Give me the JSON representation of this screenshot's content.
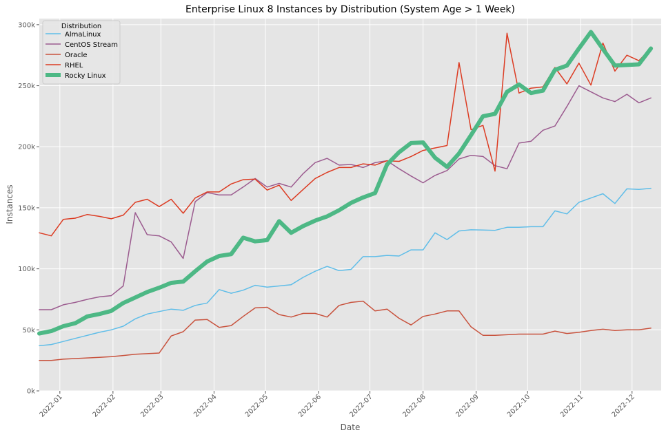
{
  "chart_data": {
    "type": "line",
    "title": "Enterprise Linux 8 Instances by Distribution (System Age > 1 Week)",
    "xlabel": "Date",
    "ylabel": "Instances",
    "xlim": [
      "2021-12-20",
      "2022-12-18"
    ],
    "ylim": [
      0,
      305000
    ],
    "grid": true,
    "legend": {
      "title": "Distribution",
      "placement": "top-left"
    },
    "x_ticks": [
      {
        "date": "2022-01-01",
        "label": "2022-01"
      },
      {
        "date": "2022-02-01",
        "label": "2022-02"
      },
      {
        "date": "2022-03-01",
        "label": "2022-03"
      },
      {
        "date": "2022-04-01",
        "label": "2022-04"
      },
      {
        "date": "2022-05-01",
        "label": "2022-05"
      },
      {
        "date": "2022-06-01",
        "label": "2022-06"
      },
      {
        "date": "2022-07-01",
        "label": "2022-07"
      },
      {
        "date": "2022-08-01",
        "label": "2022-08"
      },
      {
        "date": "2022-09-01",
        "label": "2022-09"
      },
      {
        "date": "2022-10-01",
        "label": "2022-10"
      },
      {
        "date": "2022-11-01",
        "label": "2022-11"
      },
      {
        "date": "2022-12-01",
        "label": "2022-12"
      }
    ],
    "y_ticks": [
      {
        "value": 0,
        "label": "0k"
      },
      {
        "value": 50000,
        "label": "50k"
      },
      {
        "value": 100000,
        "label": "100k"
      },
      {
        "value": 150000,
        "label": "150k"
      },
      {
        "value": 200000,
        "label": "200k"
      },
      {
        "value": 250000,
        "label": "250k"
      },
      {
        "value": 300000,
        "label": "300k"
      }
    ],
    "x": [
      "2021-12-20",
      "2021-12-27",
      "2022-01-03",
      "2022-01-10",
      "2022-01-17",
      "2022-01-24",
      "2022-01-31",
      "2022-02-07",
      "2022-02-14",
      "2022-02-21",
      "2022-02-28",
      "2022-03-07",
      "2022-03-14",
      "2022-03-21",
      "2022-03-28",
      "2022-04-04",
      "2022-04-11",
      "2022-04-18",
      "2022-04-25",
      "2022-05-02",
      "2022-05-09",
      "2022-05-16",
      "2022-05-23",
      "2022-05-30",
      "2022-06-06",
      "2022-06-13",
      "2022-06-20",
      "2022-06-27",
      "2022-07-04",
      "2022-07-11",
      "2022-07-18",
      "2022-07-25",
      "2022-08-01",
      "2022-08-08",
      "2022-08-15",
      "2022-08-22",
      "2022-08-29",
      "2022-09-05",
      "2022-09-12",
      "2022-09-19",
      "2022-09-26",
      "2022-10-03",
      "2022-10-10",
      "2022-10-17",
      "2022-10-24",
      "2022-10-31",
      "2022-11-07",
      "2022-11-14",
      "2022-11-21",
      "2022-11-28",
      "2022-12-05",
      "2022-12-12"
    ],
    "series": [
      {
        "name": "AlmaLinux",
        "color": "#5fbde8",
        "width": 1.5,
        "values": [
          37000,
          38000,
          40500,
          43000,
          45500,
          48000,
          50000,
          53000,
          59000,
          63000,
          65000,
          67000,
          66000,
          70000,
          72000,
          83000,
          80000,
          82500,
          86500,
          85000,
          86000,
          87000,
          93000,
          98000,
          102000,
          98500,
          99500,
          110000,
          110000,
          111000,
          110500,
          115500,
          115500,
          129500,
          124000,
          131000,
          132000,
          131800,
          131500,
          134000,
          134000,
          134500,
          134500,
          147500,
          145000,
          154500,
          158000,
          161500,
          153500,
          165500,
          165000,
          166000
        ]
      },
      {
        "name": "CentOS Stream",
        "color": "#9b5b8f",
        "width": 1.5,
        "values": [
          66500,
          66500,
          70500,
          72500,
          75000,
          77000,
          78000,
          86000,
          146000,
          128000,
          127000,
          122000,
          108500,
          155000,
          162500,
          160500,
          160500,
          167000,
          174000,
          167000,
          170000,
          167000,
          178000,
          187000,
          190500,
          185000,
          185500,
          183000,
          187000,
          188500,
          182000,
          176000,
          170500,
          176500,
          180500,
          190000,
          193000,
          192000,
          184500,
          182000,
          203000,
          204500,
          213500,
          217000,
          233000,
          250000,
          245000,
          240000,
          237000,
          243000,
          236000,
          240000
        ]
      },
      {
        "name": "Oracle",
        "color": "#c8523d",
        "width": 1.5,
        "values": [
          25000,
          25000,
          26000,
          26500,
          27000,
          27500,
          28000,
          29000,
          30000,
          30500,
          31000,
          45000,
          48500,
          58000,
          58500,
          52000,
          53500,
          61000,
          68000,
          68500,
          62500,
          60500,
          63500,
          63500,
          60500,
          70000,
          72500,
          73500,
          65500,
          67000,
          59500,
          54000,
          61000,
          63000,
          65500,
          65500,
          52500,
          45500,
          45500,
          46000,
          46500,
          46500,
          46500,
          49000,
          47000,
          48000,
          49500,
          50500,
          49500,
          50000,
          50000,
          51500
        ]
      },
      {
        "name": "RHEL",
        "color": "#dc3b22",
        "width": 1.5,
        "values": [
          129500,
          127000,
          140500,
          141500,
          144500,
          143000,
          141000,
          144000,
          154500,
          157000,
          151000,
          157000,
          145500,
          158000,
          163000,
          163000,
          169500,
          173000,
          173500,
          164500,
          168500,
          156000,
          165000,
          174000,
          179000,
          183000,
          183000,
          186000,
          185000,
          188500,
          188000,
          192000,
          197000,
          199000,
          201000,
          269000,
          214000,
          217500,
          180000,
          293000,
          244000,
          248000,
          249000,
          265000,
          251500,
          268500,
          250500,
          285000,
          262000,
          275000,
          270500,
          281000
        ]
      },
      {
        "name": "Rocky Linux",
        "color": "#4db885",
        "width": 6,
        "values": [
          47000,
          49000,
          53000,
          55500,
          61000,
          63000,
          65500,
          72000,
          76500,
          81000,
          84500,
          88500,
          89500,
          98000,
          106000,
          110500,
          112000,
          125500,
          122500,
          123500,
          139000,
          129500,
          135000,
          139500,
          143000,
          148000,
          154000,
          158500,
          162000,
          185500,
          195500,
          203000,
          203500,
          191000,
          183500,
          194500,
          209500,
          225000,
          227000,
          245000,
          251000,
          244000,
          246000,
          263000,
          266500,
          280500,
          294000,
          280000,
          266500,
          267000,
          267500,
          280500
        ]
      }
    ]
  }
}
